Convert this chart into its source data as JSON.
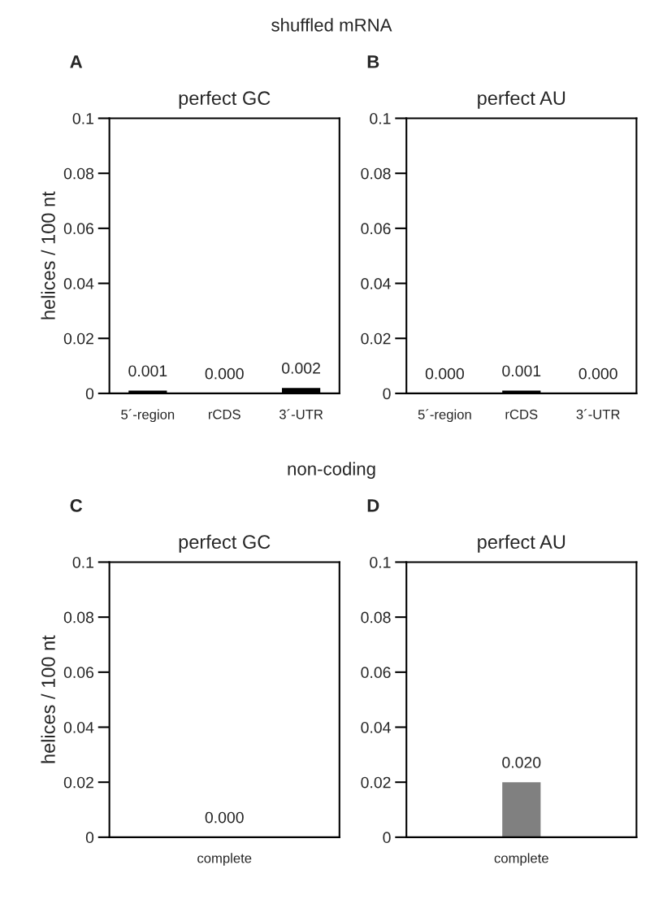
{
  "chart_data": [
    {
      "type": "bar",
      "title": "perfect GC",
      "ylabel": "helices / 100 nt",
      "annotations": [
        "shuffled mRNA",
        "A"
      ],
      "categories": [
        "5´-region",
        "rCDS",
        "3´-UTR"
      ],
      "values": [
        0.001,
        0.0,
        0.002
      ],
      "color": "#000000",
      "value_labels": [
        "0.001",
        "0.000",
        "0.002"
      ],
      "ylim": [
        0,
        0.1
      ],
      "yticks": [
        0,
        0.02,
        0.04,
        0.06,
        0.08,
        0.1
      ],
      "grid": false,
      "legend": false
    },
    {
      "type": "bar",
      "title": "perfect AU",
      "annotations": [
        "B"
      ],
      "categories": [
        "5´-region",
        "rCDS",
        "3´-UTR"
      ],
      "values": [
        0.0,
        0.001,
        0.0
      ],
      "color": "#000000",
      "value_labels": [
        "0.000",
        "0.001",
        "0.000"
      ],
      "ylim": [
        0,
        0.1
      ],
      "yticks": [
        0,
        0.02,
        0.04,
        0.06,
        0.08,
        0.1
      ],
      "grid": false,
      "legend": false
    },
    {
      "type": "bar",
      "title": "perfect GC",
      "ylabel": "helices / 100 nt",
      "annotations": [
        "non-coding",
        "C"
      ],
      "categories": [
        "complete"
      ],
      "values": [
        0.0
      ],
      "color": "#808080",
      "value_labels": [
        "0.000"
      ],
      "ylim": [
        0,
        0.1
      ],
      "yticks": [
        0,
        0.02,
        0.04,
        0.06,
        0.08,
        0.1
      ],
      "grid": false,
      "legend": false
    },
    {
      "type": "bar",
      "title": "perfect AU",
      "annotations": [
        "D"
      ],
      "categories": [
        "complete"
      ],
      "values": [
        0.02
      ],
      "color": "#808080",
      "value_labels": [
        "0.020"
      ],
      "ylim": [
        0,
        0.1
      ],
      "yticks": [
        0,
        0.02,
        0.04,
        0.06,
        0.08,
        0.1
      ],
      "grid": false,
      "legend": false
    }
  ]
}
